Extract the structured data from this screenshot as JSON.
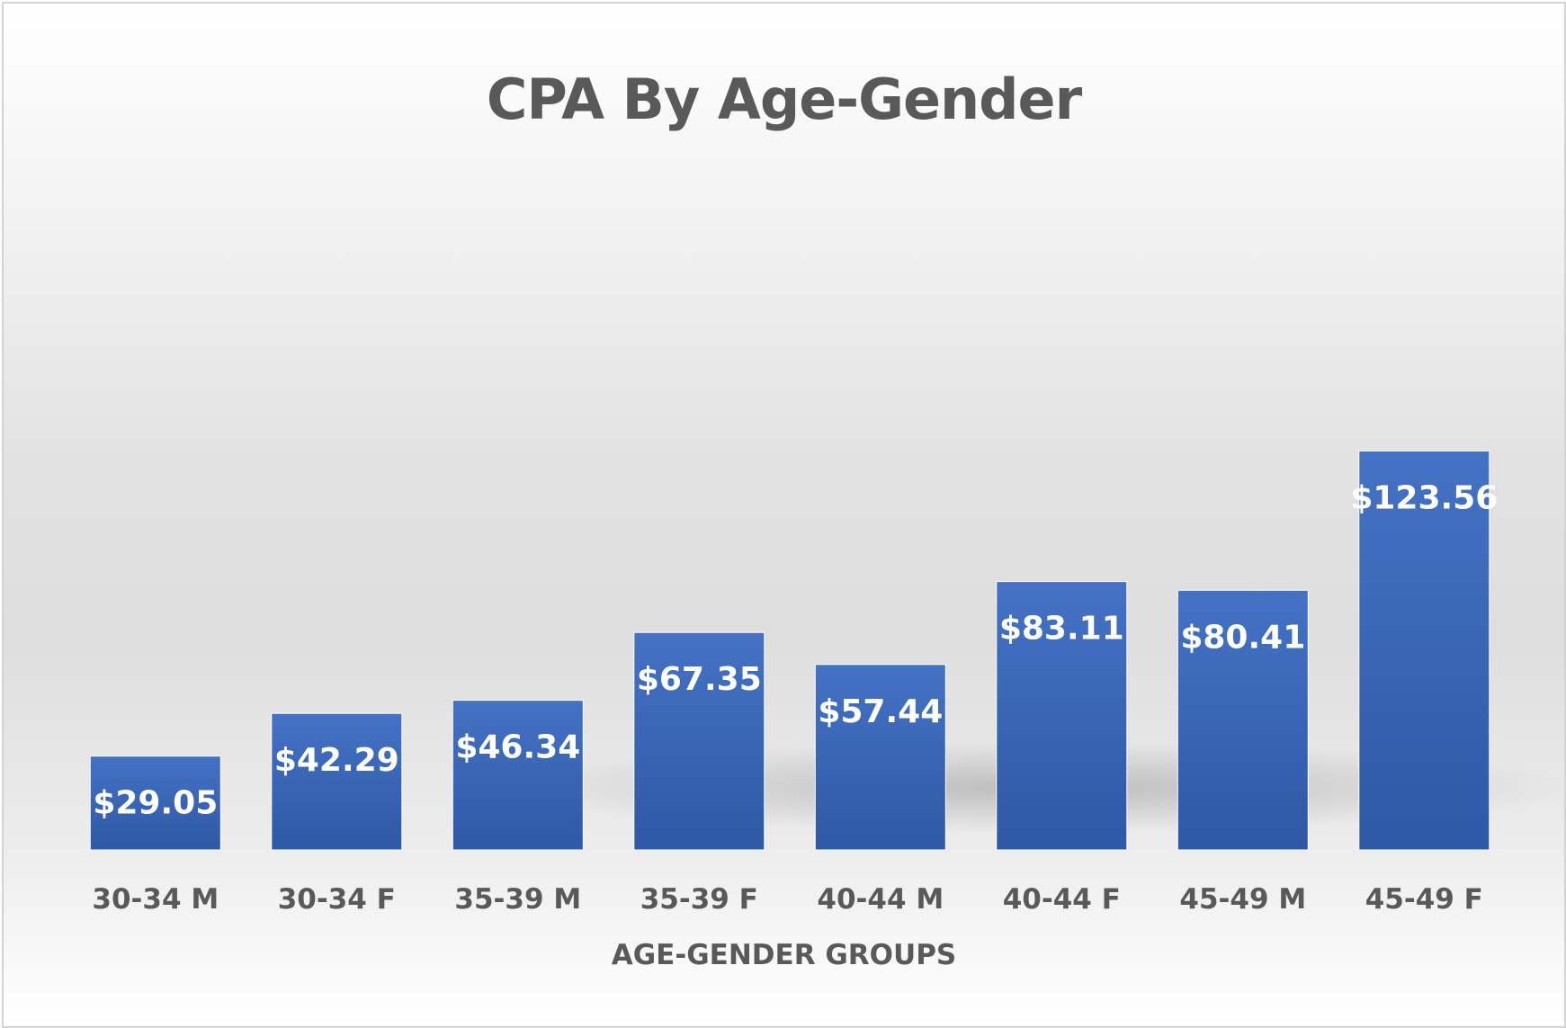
{
  "chart_data": {
    "type": "bar",
    "title": "CPA By Age-Gender",
    "xlabel": "AGE-GENDER GROUPS",
    "ylabel": "",
    "categories": [
      "30-34 M",
      "30-34 F",
      "35-39 M",
      "35-39 F",
      "40-44 M",
      "40-44 F",
      "45-49 M",
      "45-49 F"
    ],
    "values": [
      29.05,
      42.29,
      46.34,
      67.35,
      57.44,
      83.11,
      80.41,
      123.56
    ],
    "data_labels": [
      "$29.05",
      "$42.29",
      "$46.34",
      "$67.35",
      "$57.44",
      "$83.11",
      "$80.41",
      "$123.56"
    ],
    "ylim": [
      0,
      140
    ],
    "grid": false,
    "legend": "none",
    "bar_color": "#3a63b4",
    "bar_color_top": "#4472c4",
    "bar_color_bottom": "#2f58a5"
  }
}
